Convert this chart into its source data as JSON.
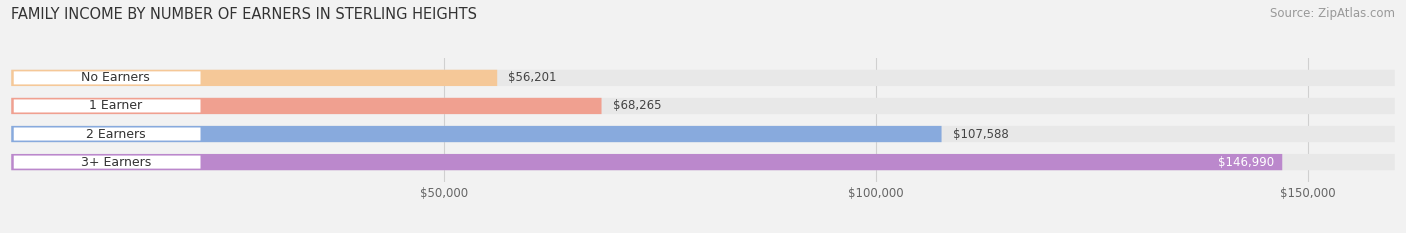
{
  "title": "FAMILY INCOME BY NUMBER OF EARNERS IN STERLING HEIGHTS",
  "source": "Source: ZipAtlas.com",
  "categories": [
    "No Earners",
    "1 Earner",
    "2 Earners",
    "3+ Earners"
  ],
  "values": [
    56201,
    68265,
    107588,
    146990
  ],
  "bar_colors": [
    "#f5c898",
    "#f0a090",
    "#88aadd",
    "#bb88cc"
  ],
  "label_colors_value": [
    "#555555",
    "#555555",
    "#555555",
    "#ffffff"
  ],
  "xmin": 0,
  "xmax": 160000,
  "xlim_min": 0,
  "xlim_max": 160000,
  "xticks": [
    50000,
    100000,
    150000
  ],
  "xtick_labels": [
    "$50,000",
    "$100,000",
    "$150,000"
  ],
  "bg_color": "#f2f2f2",
  "bar_bg_color": "#e8e8e8",
  "title_fontsize": 10.5,
  "source_fontsize": 8.5,
  "tick_fontsize": 8.5,
  "value_fontsize": 8.5,
  "category_fontsize": 9
}
